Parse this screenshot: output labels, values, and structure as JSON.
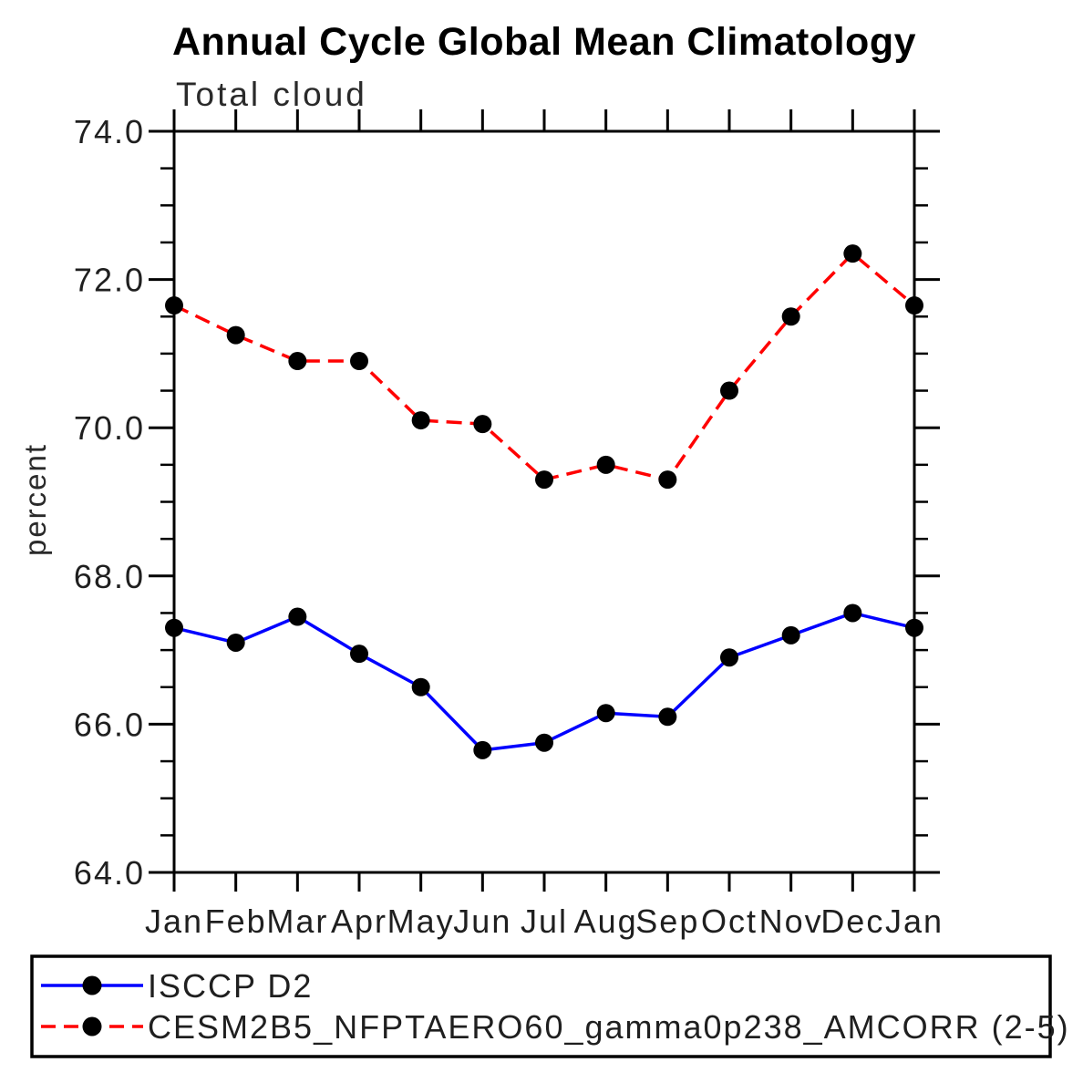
{
  "window": {
    "background_color": "#ffffff"
  },
  "colors": {
    "axis": "#000000",
    "text": "#1f1f1f",
    "series_blue": "#0000ff",
    "series_red": "#ff0000",
    "marker": "#000000"
  },
  "chart_data": {
    "type": "line",
    "title": "Annual Cycle Global Mean Climatology",
    "subtitle": "Total cloud",
    "xlabel": "",
    "ylabel": "percent",
    "ylim": [
      64.0,
      74.0
    ],
    "ytick_major_interval": 2.0,
    "ytick_minor_interval": 0.5,
    "ytick_labels": [
      "64.0",
      "66.0",
      "68.0",
      "70.0",
      "72.0",
      "74.0"
    ],
    "categories": [
      "Jan",
      "Feb",
      "Mar",
      "Apr",
      "May",
      "Jun",
      "Jul",
      "Aug",
      "Sep",
      "Oct",
      "Nov",
      "Dec",
      "Jan"
    ],
    "grid": false,
    "legend_position": "bottom",
    "series": [
      {
        "name": "ISCCP D2",
        "color": "#0000ff",
        "line_style": "solid",
        "marker": "filled-circle",
        "marker_color": "#000000",
        "values": [
          67.3,
          67.1,
          67.45,
          66.95,
          66.5,
          65.65,
          65.75,
          66.15,
          66.1,
          66.9,
          67.2,
          67.5,
          67.3
        ]
      },
      {
        "name": "CESM2B5_NFPTAERO60_gamma0p238_AMCORR (2-5)",
        "color": "#ff0000",
        "line_style": "dashed",
        "marker": "filled-circle",
        "marker_color": "#000000",
        "values": [
          71.65,
          71.25,
          70.9,
          70.9,
          70.1,
          70.05,
          69.3,
          69.5,
          69.3,
          70.5,
          71.5,
          72.35,
          71.65
        ]
      }
    ]
  }
}
